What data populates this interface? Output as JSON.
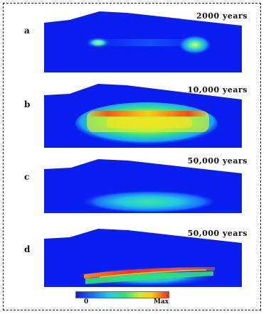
{
  "panels": [
    {
      "label": "a",
      "time": "2000  years"
    },
    {
      "label": "b",
      "time": "10,000  years"
    },
    {
      "label": "c",
      "time": "50,000  years"
    },
    {
      "label": "d",
      "time": "50,000  years"
    }
  ],
  "colorbar": {
    "min_label": "0",
    "max_label": "Max"
  },
  "colors": {
    "background_blue": "#0a1ef0",
    "low": "#0b1de0",
    "high": "#ff2a10"
  }
}
